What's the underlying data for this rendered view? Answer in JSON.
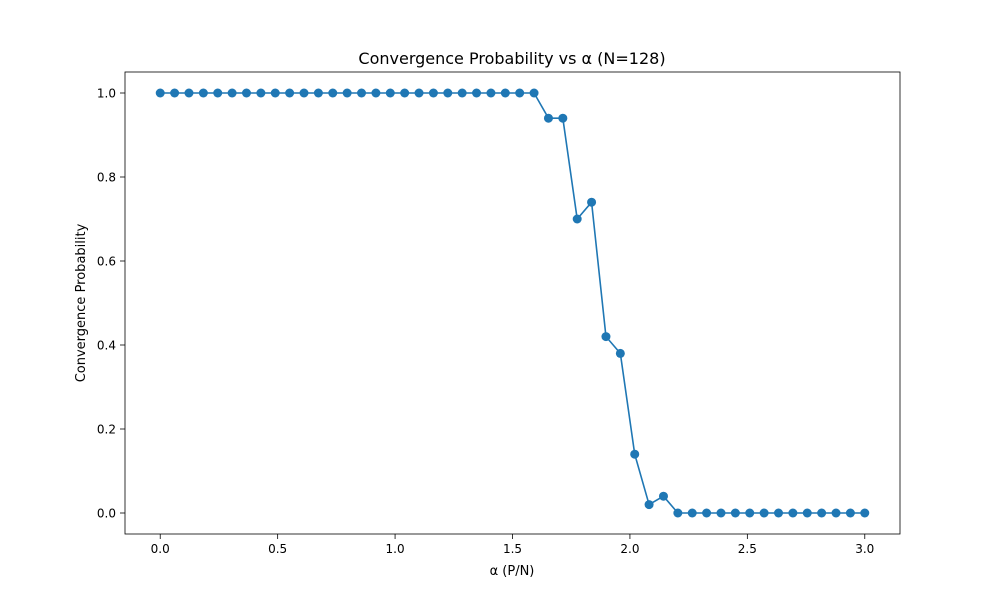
{
  "chart_data": {
    "type": "line",
    "title": "Convergence Probability vs α (N=128)",
    "xlabel": "α (P/N)",
    "ylabel": "Convergence Probability",
    "xlim": [
      -0.15,
      3.15
    ],
    "ylim": [
      -0.05,
      1.05
    ],
    "xticks": [
      0.0,
      0.5,
      1.0,
      1.5,
      2.0,
      2.5,
      3.0
    ],
    "xtick_labels": [
      "0.0",
      "0.5",
      "1.0",
      "1.5",
      "2.0",
      "2.5",
      "3.0"
    ],
    "yticks": [
      0.0,
      0.2,
      0.4,
      0.6,
      0.8,
      1.0
    ],
    "ytick_labels": [
      "0.0",
      "0.2",
      "0.4",
      "0.6",
      "0.8",
      "1.0"
    ],
    "grid": false,
    "marker": "circle",
    "color": "#1f77b4",
    "series": [
      {
        "x": [
          0.0,
          0.0612,
          0.1224,
          0.1837,
          0.2449,
          0.3061,
          0.3673,
          0.4286,
          0.4898,
          0.551,
          0.6122,
          0.6735,
          0.7347,
          0.7959,
          0.8571,
          0.9184,
          0.9796,
          1.0408,
          1.102,
          1.1633,
          1.2245,
          1.2857,
          1.3469,
          1.4082,
          1.4694,
          1.5306,
          1.5918,
          1.6531,
          1.7143,
          1.7755,
          1.8367,
          1.898,
          1.9592,
          2.0204,
          2.0816,
          2.1429,
          2.2041,
          2.2653,
          2.3265,
          2.3878,
          2.449,
          2.5102,
          2.5714,
          2.6327,
          2.6939,
          2.7551,
          2.8163,
          2.8776,
          2.9388,
          3.0
        ],
        "values": [
          1.0,
          1.0,
          1.0,
          1.0,
          1.0,
          1.0,
          1.0,
          1.0,
          1.0,
          1.0,
          1.0,
          1.0,
          1.0,
          1.0,
          1.0,
          1.0,
          1.0,
          1.0,
          1.0,
          1.0,
          1.0,
          1.0,
          1.0,
          1.0,
          1.0,
          1.0,
          1.0,
          0.94,
          0.94,
          0.7,
          0.74,
          0.42,
          0.38,
          0.14,
          0.02,
          0.04,
          0.0,
          0.0,
          0.0,
          0.0,
          0.0,
          0.0,
          0.0,
          0.0,
          0.0,
          0.0,
          0.0,
          0.0,
          0.0,
          0.0
        ]
      }
    ]
  }
}
